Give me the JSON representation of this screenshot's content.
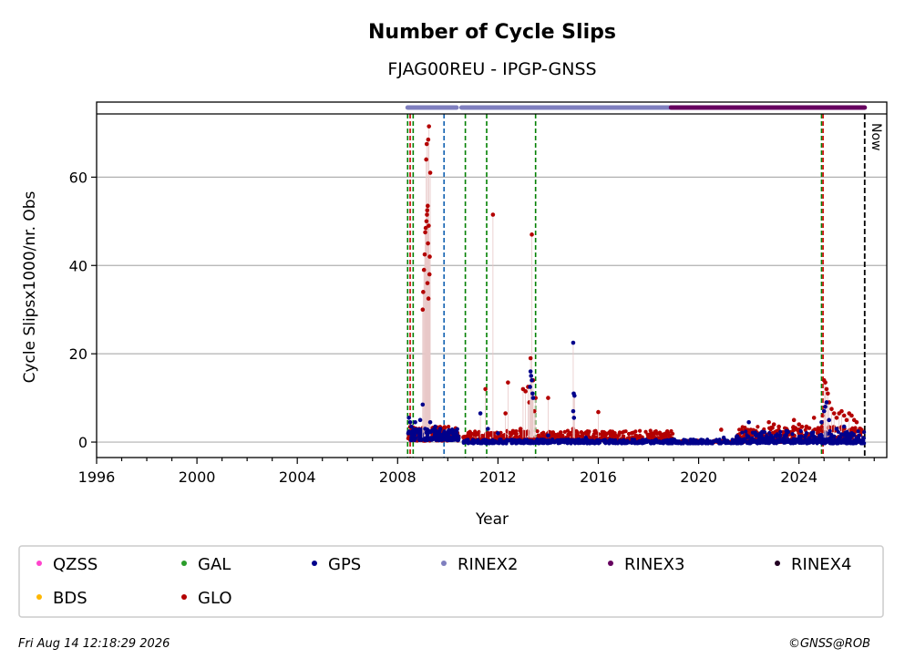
{
  "chart_data": {
    "type": "scatter",
    "title": "Number of Cycle Slips",
    "subtitle": "FJAG00REU - IPGP-GNSS",
    "xlabel": "Year",
    "ylabel": "Cycle Slipsx1000/nr. Obs",
    "xlim": [
      1996,
      2027.5
    ],
    "ylim": [
      -3.5,
      77
    ],
    "plot_ylim_top": 75,
    "x_ticks": [
      1996,
      2000,
      2004,
      2008,
      2012,
      2016,
      2020,
      2024
    ],
    "x_tick_labels": [
      "1996",
      "2000",
      "2004",
      "2008",
      "2012",
      "2016",
      "2020",
      "2024"
    ],
    "y_ticks": [
      0,
      20,
      40,
      60
    ],
    "y_tick_labels": [
      "0",
      "20",
      "40",
      "60"
    ],
    "grid": "horizontal",
    "now_label": "Now",
    "now_x": 2026.62,
    "vlines": [
      {
        "x": 2008.4,
        "color": "#008000"
      },
      {
        "x": 2008.5,
        "color": "#cc0000"
      },
      {
        "x": 2008.62,
        "color": "#008000"
      },
      {
        "x": 2009.85,
        "color": "#1060b0"
      },
      {
        "x": 2010.7,
        "color": "#008000"
      },
      {
        "x": 2011.55,
        "color": "#008000"
      },
      {
        "x": 2013.5,
        "color": "#008000"
      },
      {
        "x": 2024.9,
        "color": "#008000"
      },
      {
        "x": 2024.96,
        "color": "#cc0000"
      }
    ],
    "rinex_bars": [
      {
        "name": "RINEX2",
        "from": 2008.4,
        "to": 2010.35
      },
      {
        "name": "RINEX2",
        "from": 2010.55,
        "to": 2018.9
      },
      {
        "name": "RINEX3",
        "from": 2018.9,
        "to": 2026.62
      }
    ],
    "series": [
      {
        "name": "GLO",
        "color": "#b30000",
        "points": [
          [
            2008.55,
            2.4
          ],
          [
            2008.7,
            3.1
          ],
          [
            2008.9,
            2.2
          ],
          [
            2009.0,
            30.0
          ],
          [
            2009.02,
            34.0
          ],
          [
            2009.05,
            39.0
          ],
          [
            2009.08,
            42.5
          ],
          [
            2009.1,
            47.5
          ],
          [
            2009.12,
            48.5
          ],
          [
            2009.15,
            50.0
          ],
          [
            2009.17,
            51.5
          ],
          [
            2009.18,
            52.5
          ],
          [
            2009.2,
            53.5
          ],
          [
            2009.14,
            64.0
          ],
          [
            2009.16,
            67.5
          ],
          [
            2009.22,
            68.5
          ],
          [
            2009.25,
            71.5
          ],
          [
            2009.3,
            61.0
          ],
          [
            2009.27,
            38.0
          ],
          [
            2009.23,
            32.5
          ],
          [
            2009.19,
            36.0
          ],
          [
            2009.21,
            45.0
          ],
          [
            2009.24,
            49.0
          ],
          [
            2009.28,
            42.0
          ],
          [
            2009.5,
            2.5
          ],
          [
            2009.7,
            2.1
          ],
          [
            2010.0,
            1.9
          ],
          [
            2010.3,
            1.5
          ],
          [
            2010.9,
            1.2
          ],
          [
            2011.5,
            12.0
          ],
          [
            2011.8,
            51.5
          ],
          [
            2012.3,
            6.5
          ],
          [
            2012.4,
            13.5
          ],
          [
            2012.6,
            2.5
          ],
          [
            2012.9,
            3.0
          ],
          [
            2013.0,
            12.0
          ],
          [
            2013.1,
            11.5
          ],
          [
            2013.2,
            12.5
          ],
          [
            2013.3,
            19.0
          ],
          [
            2013.35,
            47.0
          ],
          [
            2013.4,
            14.0
          ],
          [
            2013.5,
            10.0
          ],
          [
            2013.45,
            7.0
          ],
          [
            2013.25,
            9.0
          ],
          [
            2014.0,
            10.0
          ],
          [
            2014.5,
            2.2
          ],
          [
            2015.0,
            3.0
          ],
          [
            2015.6,
            2.0
          ],
          [
            2016.0,
            6.8
          ],
          [
            2016.5,
            1.5
          ],
          [
            2017.0,
            1.3
          ],
          [
            2017.5,
            1.1
          ],
          [
            2018.0,
            1.0
          ],
          [
            2018.5,
            1.0
          ],
          [
            2018.9,
            0.8
          ],
          [
            2020.9,
            2.8
          ],
          [
            2021.8,
            2.5
          ],
          [
            2022.0,
            2.0
          ],
          [
            2022.3,
            1.5
          ],
          [
            2022.8,
            4.5
          ],
          [
            2023.0,
            4.0
          ],
          [
            2023.2,
            3.5
          ],
          [
            2023.5,
            3.0
          ],
          [
            2023.8,
            5.0
          ],
          [
            2024.0,
            4.0
          ],
          [
            2024.3,
            3.5
          ],
          [
            2024.6,
            5.5
          ],
          [
            2024.95,
            6.0
          ],
          [
            2025.0,
            14.0
          ],
          [
            2025.05,
            13.5
          ],
          [
            2025.1,
            12.0
          ],
          [
            2025.15,
            11.0
          ],
          [
            2025.2,
            9.0
          ],
          [
            2025.3,
            7.5
          ],
          [
            2025.4,
            6.5
          ],
          [
            2025.5,
            5.5
          ],
          [
            2025.6,
            6.5
          ],
          [
            2025.7,
            7.0
          ],
          [
            2025.8,
            6.0
          ],
          [
            2025.9,
            5.0
          ],
          [
            2026.0,
            6.5
          ],
          [
            2026.1,
            6.0
          ],
          [
            2026.2,
            5.0
          ],
          [
            2026.3,
            4.5
          ],
          [
            2026.45,
            3.0
          ]
        ]
      },
      {
        "name": "GPS",
        "color": "#00008b",
        "points": [
          [
            2008.45,
            5.5
          ],
          [
            2008.5,
            4.5
          ],
          [
            2008.55,
            3.5
          ],
          [
            2008.6,
            2.5
          ],
          [
            2008.7,
            4.5
          ],
          [
            2008.9,
            5.0
          ],
          [
            2009.0,
            8.5
          ],
          [
            2009.1,
            3.0
          ],
          [
            2009.3,
            4.5
          ],
          [
            2009.5,
            3.5
          ],
          [
            2009.7,
            3.0
          ],
          [
            2010.2,
            2.0
          ],
          [
            2010.8,
            0.5
          ],
          [
            2011.3,
            6.5
          ],
          [
            2011.6,
            3.0
          ],
          [
            2012.0,
            2.0
          ],
          [
            2013.3,
            16.0
          ],
          [
            2013.32,
            15.0
          ],
          [
            2013.35,
            14.0
          ],
          [
            2013.38,
            11.0
          ],
          [
            2013.4,
            10.0
          ],
          [
            2013.28,
            12.5
          ],
          [
            2014.0,
            1.5
          ],
          [
            2015.0,
            22.5
          ],
          [
            2015.02,
            11.0
          ],
          [
            2015.05,
            10.5
          ],
          [
            2015.0,
            7.0
          ],
          [
            2015.03,
            5.5
          ],
          [
            2015.5,
            1.0
          ],
          [
            2016.5,
            0.3
          ],
          [
            2018.0,
            0.2
          ],
          [
            2020.0,
            0.1
          ],
          [
            2021.0,
            1.0
          ],
          [
            2022.0,
            4.5
          ],
          [
            2022.5,
            1.5
          ],
          [
            2023.5,
            2.5
          ],
          [
            2024.3,
            2.0
          ],
          [
            2024.9,
            4.5
          ],
          [
            2025.0,
            7.0
          ],
          [
            2025.05,
            8.0
          ],
          [
            2025.1,
            9.0
          ],
          [
            2025.2,
            5.0
          ],
          [
            2025.5,
            3.0
          ],
          [
            2025.8,
            3.5
          ],
          [
            2026.1,
            2.0
          ],
          [
            2026.4,
            1.5
          ]
        ]
      }
    ],
    "bands": [
      {
        "series": "GLO",
        "from": 2008.4,
        "to": 2010.45,
        "ymin": 0.3,
        "ymax": 3.5,
        "count": 160
      },
      {
        "series": "GLO",
        "from": 2010.6,
        "to": 2019.0,
        "ymin": 0.4,
        "ymax": 2.6,
        "count": 520
      },
      {
        "series": "GLO",
        "from": 2019.0,
        "to": 2021.5,
        "ymin": 0.0,
        "ymax": 0.4,
        "count": 80
      },
      {
        "series": "GLO",
        "from": 2021.5,
        "to": 2026.6,
        "ymin": 0.0,
        "ymax": 3.5,
        "count": 340
      },
      {
        "series": "GPS",
        "from": 2008.4,
        "to": 2010.45,
        "ymin": 0.4,
        "ymax": 3.0,
        "count": 170
      },
      {
        "series": "GPS",
        "from": 2010.6,
        "to": 2026.6,
        "ymin": -0.3,
        "ymax": 0.6,
        "count": 700
      },
      {
        "series": "GPS",
        "from": 2021.5,
        "to": 2026.6,
        "ymin": 0.0,
        "ymax": 2.5,
        "count": 220
      }
    ]
  },
  "legend": {
    "items": [
      {
        "label": "QZSS",
        "color": "#ff44cc"
      },
      {
        "label": "GAL",
        "color": "#2a9d2a"
      },
      {
        "label": "GPS",
        "color": "#00008b"
      },
      {
        "label": "RINEX2",
        "color": "#7f7fbf"
      },
      {
        "label": "RINEX3",
        "color": "#66005f"
      },
      {
        "label": "RINEX4",
        "color": "#220022"
      },
      {
        "label": "BDS",
        "color": "#ffb700"
      },
      {
        "label": "GLO",
        "color": "#b30000"
      }
    ]
  },
  "footer": {
    "timestamp": "Fri Aug 14 12:18:29 2026",
    "credit": "©GNSS@ROB"
  }
}
